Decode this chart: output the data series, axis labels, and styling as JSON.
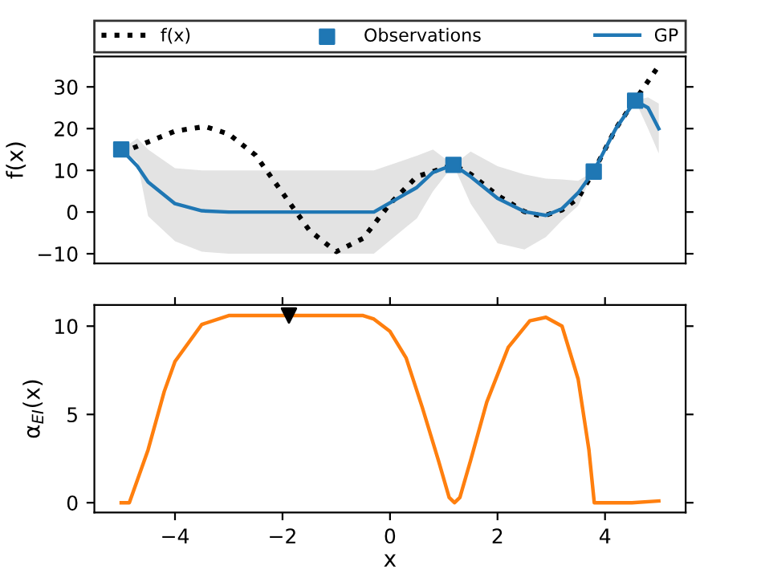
{
  "chart_data": [
    {
      "type": "line",
      "ylabel": "f(x)",
      "xlim": [
        -5.5,
        5.5
      ],
      "ylim": [
        -12.3,
        37.3
      ],
      "yticks": [
        -10,
        0,
        10,
        20,
        30
      ],
      "tick_labels": "y",
      "legend": "top",
      "grid": false,
      "series": [
        {
          "name": "f(x)",
          "color": "#000000",
          "line_style": "dotted",
          "marker": "none",
          "x": [
            -5,
            -4.5,
            -4,
            -3.44,
            -3,
            -2.5,
            -2,
            -1.5,
            -1,
            -0.5,
            0,
            0.5,
            1.18,
            1.5,
            2,
            2.5,
            2.84,
            3.2,
            3.5,
            3.79,
            4.2,
            4.54,
            4.97
          ],
          "values": [
            14.2,
            16.8,
            19.4,
            20.5,
            18.7,
            13.6,
            4.6,
            -4.4,
            -9.5,
            -6.3,
            2,
            8.5,
            11.3,
            9.1,
            4,
            0.1,
            -1,
            0.5,
            3.3,
            9.8,
            20,
            26.5,
            34.5
          ]
        },
        {
          "name": "Observations",
          "type": "scatter",
          "color": "#1f77b4",
          "marker": "square",
          "x": [
            -5,
            1.18,
            3.79,
            4.56
          ],
          "values": [
            15,
            11.3,
            9.7,
            26.7
          ]
        },
        {
          "name": "GP",
          "color": "#1f77b4",
          "line_style": "solid",
          "marker": "none",
          "x": [
            -5,
            -4.7,
            -4.5,
            -4,
            -3.5,
            -3,
            -2,
            -1,
            -0.3,
            0.5,
            0.8,
            1.18,
            1.5,
            2,
            2.5,
            2.9,
            3.2,
            3.5,
            3.79,
            4.2,
            4.56,
            4.8,
            5
          ],
          "values": [
            15,
            11,
            7.2,
            2,
            0.3,
            0,
            0,
            0,
            0,
            5.9,
            9.5,
            11.3,
            8.5,
            3.3,
            0.1,
            -0.8,
            0.8,
            4.6,
            9.8,
            20,
            26.7,
            25,
            20
          ],
          "lower": [
            15,
            12,
            -1,
            -7,
            -9.5,
            -10,
            -10,
            -10,
            -10,
            -1.5,
            5,
            11.3,
            2,
            -7.5,
            -9,
            -6,
            -2,
            1.5,
            9.8,
            19,
            26.7,
            20,
            14
          ],
          "upper": [
            15,
            17.7,
            15,
            10.5,
            10,
            10,
            10,
            10,
            10,
            13.5,
            15,
            11.3,
            14.5,
            11,
            9,
            8,
            7.8,
            7.5,
            9.8,
            21,
            26.7,
            27.5,
            26
          ]
        }
      ]
    },
    {
      "type": "line",
      "xlabel": "x",
      "ylabel": "α$_{EI}$(x)",
      "xlim": [
        -5.5,
        5.5
      ],
      "xticks": [
        -4,
        -2,
        0,
        2,
        4
      ],
      "ylim": [
        -0.55,
        11.2
      ],
      "yticks": [
        0,
        5,
        10
      ],
      "legend": false,
      "grid": false,
      "series": [
        {
          "color": "#ff7f0e",
          "line_style": "solid",
          "marker": "none",
          "x": [
            -5,
            -4.85,
            -4.5,
            -4.2,
            -4,
            -3.5,
            -3,
            -2,
            -1,
            -0.5,
            -0.3,
            0,
            0.3,
            0.6,
            0.9,
            1.1,
            1.2,
            1.3,
            1.5,
            1.8,
            2.2,
            2.6,
            2.9,
            3.2,
            3.5,
            3.7,
            3.8,
            4.5,
            5
          ],
          "values": [
            0,
            0,
            3,
            6.3,
            8,
            10.1,
            10.6,
            10.6,
            10.6,
            10.6,
            10.4,
            9.7,
            8.2,
            5.4,
            2.4,
            0.3,
            0,
            0.3,
            2.4,
            5.7,
            8.8,
            10.3,
            10.5,
            10,
            7,
            3,
            0,
            0,
            0.1
          ]
        },
        {
          "type": "scatter",
          "color": "#000000",
          "marker": "triangle",
          "x": [
            -1.88
          ],
          "values": [
            10.6
          ]
        }
      ]
    }
  ]
}
